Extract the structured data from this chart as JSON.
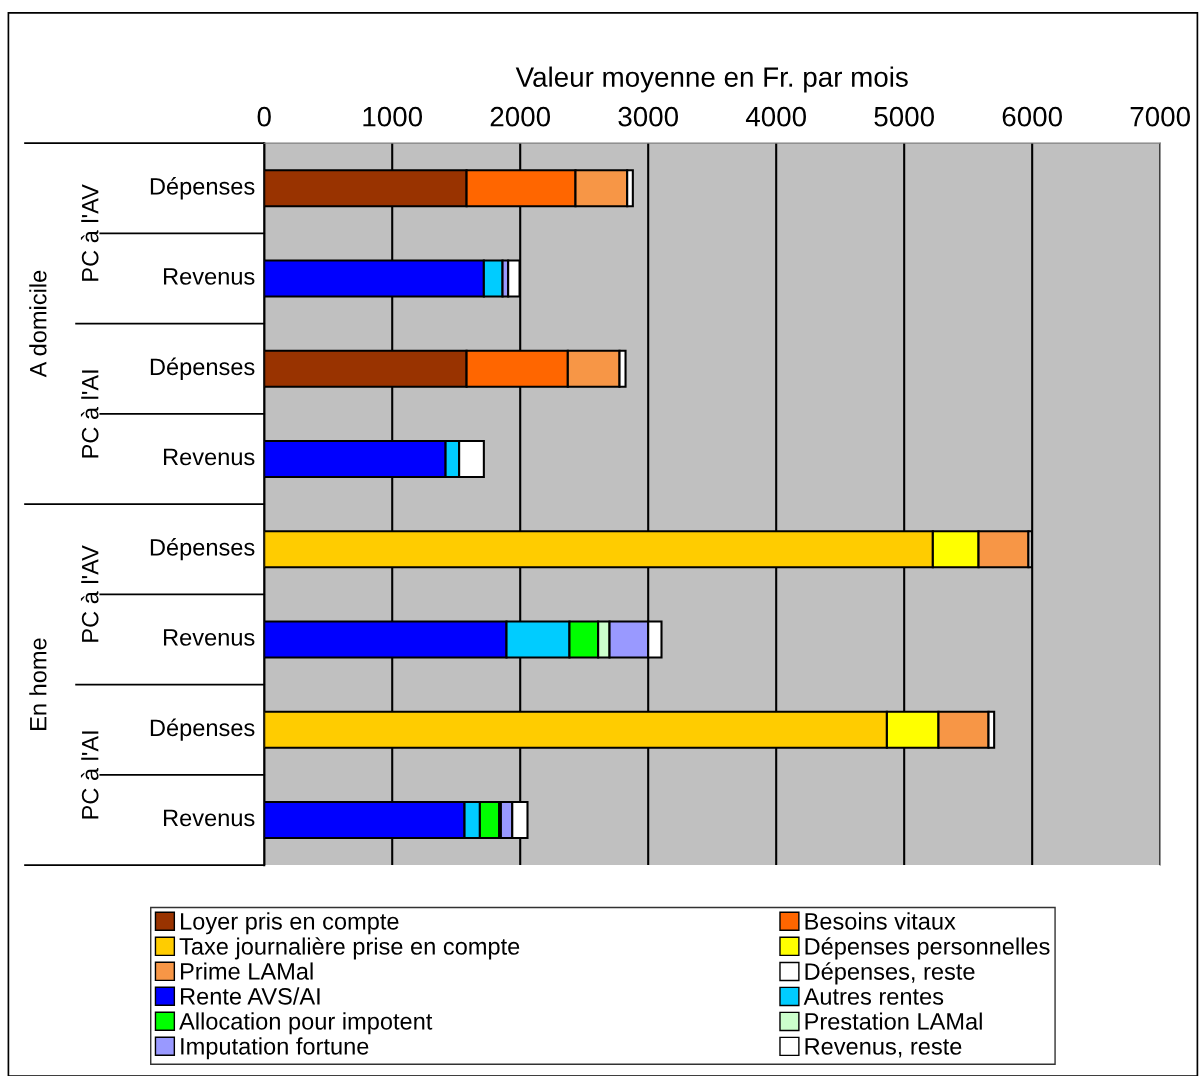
{
  "chart_data": {
    "type": "bar",
    "orientation": "horizontal",
    "stacked": true,
    "xlabel": "Valeur moyenne en Fr. par mois",
    "categories": [
      "Dépenses",
      "Revenus",
      "Dépenses",
      "Revenus",
      "Dépenses",
      "Revenus",
      "Dépenses",
      "Revenus"
    ],
    "annotations": [
      "PC à l'AV",
      "PC à l'AI",
      "PC à l'AV",
      "PC à l'AI",
      "A domicile",
      "En home"
    ],
    "xlim": [
      0,
      7000
    ],
    "xticks": [
      0,
      1000,
      2000,
      3000,
      4000,
      5000,
      6000,
      7000
    ],
    "grid": "x",
    "legend": "bottom",
    "series": [
      {
        "name": "Loyer pris en compte",
        "color": "#993300",
        "values": [
          1581,
          null,
          1581,
          null,
          null,
          null,
          null,
          null
        ]
      },
      {
        "name": "Besoins vitaux",
        "color": "#ff6600",
        "values": [
          851,
          null,
          791,
          null,
          null,
          null,
          null,
          null
        ]
      },
      {
        "name": "Taxe journalière prise en compte",
        "color": "#ffcc00",
        "values": [
          null,
          null,
          null,
          null,
          5224,
          null,
          4865,
          null
        ]
      },
      {
        "name": "Dépenses personnelles",
        "color": "#ffff00",
        "values": [
          null,
          null,
          null,
          null,
          357,
          null,
          403,
          null
        ]
      },
      {
        "name": "Prime LAMal",
        "color": "#f79646",
        "values": [
          404,
          null,
          404,
          null,
          390,
          null,
          391,
          null
        ]
      },
      {
        "name": "Dépenses, reste",
        "color": "#ffffff",
        "values": [
          44,
          null,
          47,
          null,
          26,
          null,
          44,
          null
        ]
      },
      {
        "name": "Rente AVS/AI",
        "color": "#0000ff",
        "values": [
          null,
          1716,
          null,
          1417,
          null,
          1893,
          null,
          1565
        ]
      },
      {
        "name": "Autres rentes",
        "color": "#00ccff",
        "values": [
          null,
          146,
          null,
          106,
          null,
          492,
          null,
          120
        ]
      },
      {
        "name": "Allocation pour impotent",
        "color": "#00ff00",
        "values": [
          null,
          null,
          null,
          null,
          null,
          224,
          null,
          151
        ]
      },
      {
        "name": "Prestation LAMal",
        "color": "#ccffcc",
        "values": [
          null,
          null,
          null,
          null,
          null,
          89,
          null,
          13
        ]
      },
      {
        "name": "Imputation fortune",
        "color": "#9999ff",
        "values": [
          null,
          44,
          null,
          null,
          null,
          302,
          null,
          89
        ]
      },
      {
        "name": "Revenus, reste",
        "color": "#ffffff",
        "values": [
          null,
          89,
          null,
          193,
          null,
          104,
          null,
          119
        ]
      }
    ]
  }
}
